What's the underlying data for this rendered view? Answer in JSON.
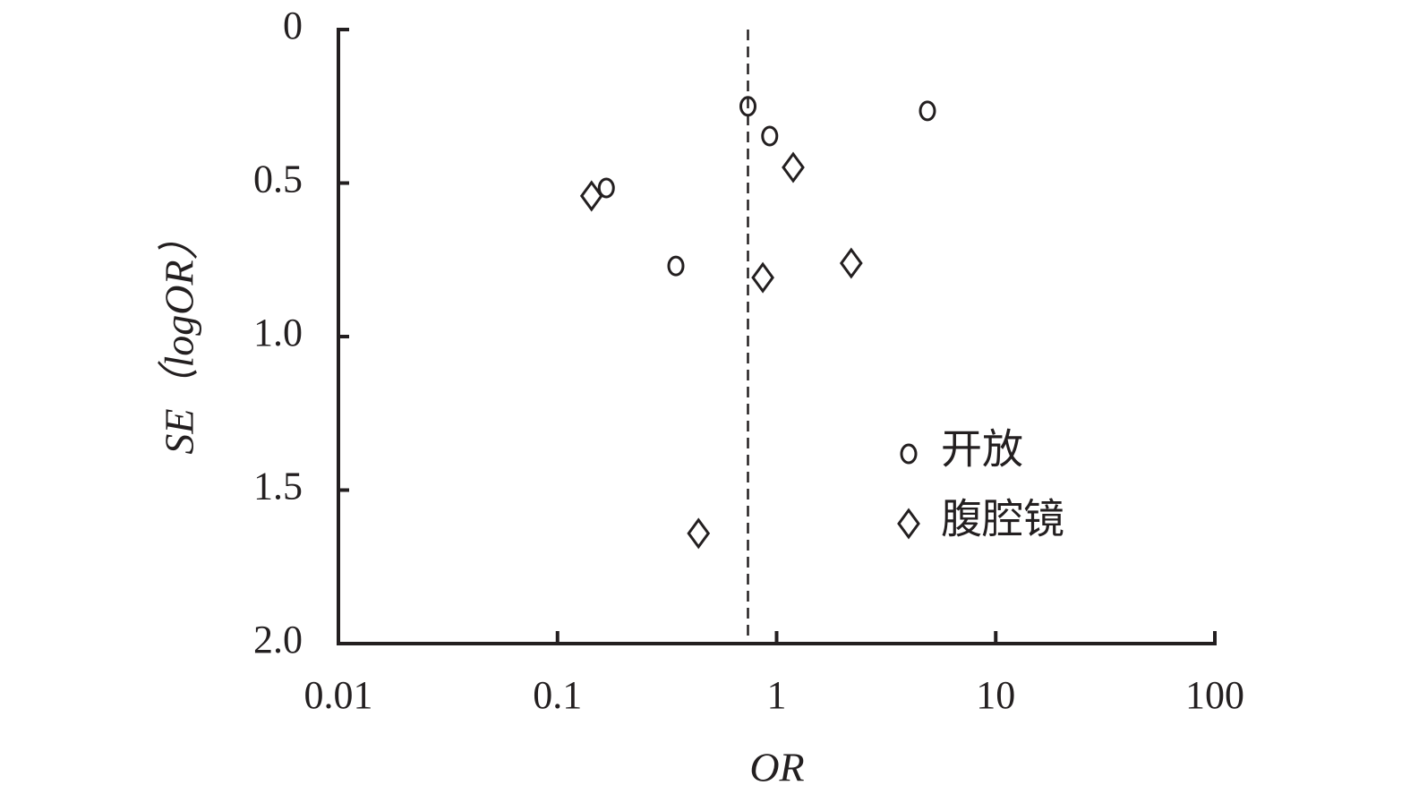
{
  "chart_data": {
    "type": "scatter",
    "x_label": "OR",
    "y_label": "SE（logOR）",
    "x_log": true,
    "y_reversed": true,
    "xlim": [
      0.01,
      100
    ],
    "xticks": [
      0.01,
      0.1,
      1,
      10,
      100
    ],
    "ylim": [
      0,
      2
    ],
    "yticks": [
      0,
      0.5,
      {
        "value": 1,
        "label": "1.0"
      },
      1.5,
      {
        "value": 2,
        "label": "2.0"
      }
    ],
    "pooled_or": 0.74,
    "legend": "right",
    "color": "#231f20",
    "series": [
      {
        "name": "开放",
        "marker": "circle",
        "x": [
          0.74,
          4.88,
          0.93,
          0.167,
          0.347
        ],
        "values": [
          0.25,
          0.265,
          0.347,
          0.516,
          0.77
        ]
      },
      {
        "name": "腹腔镜",
        "marker": "diamond",
        "x": [
          1.19,
          0.143,
          2.19,
          0.865,
          0.44
        ],
        "values": [
          0.449,
          0.542,
          0.761,
          0.808,
          1.641
        ]
      }
    ]
  }
}
